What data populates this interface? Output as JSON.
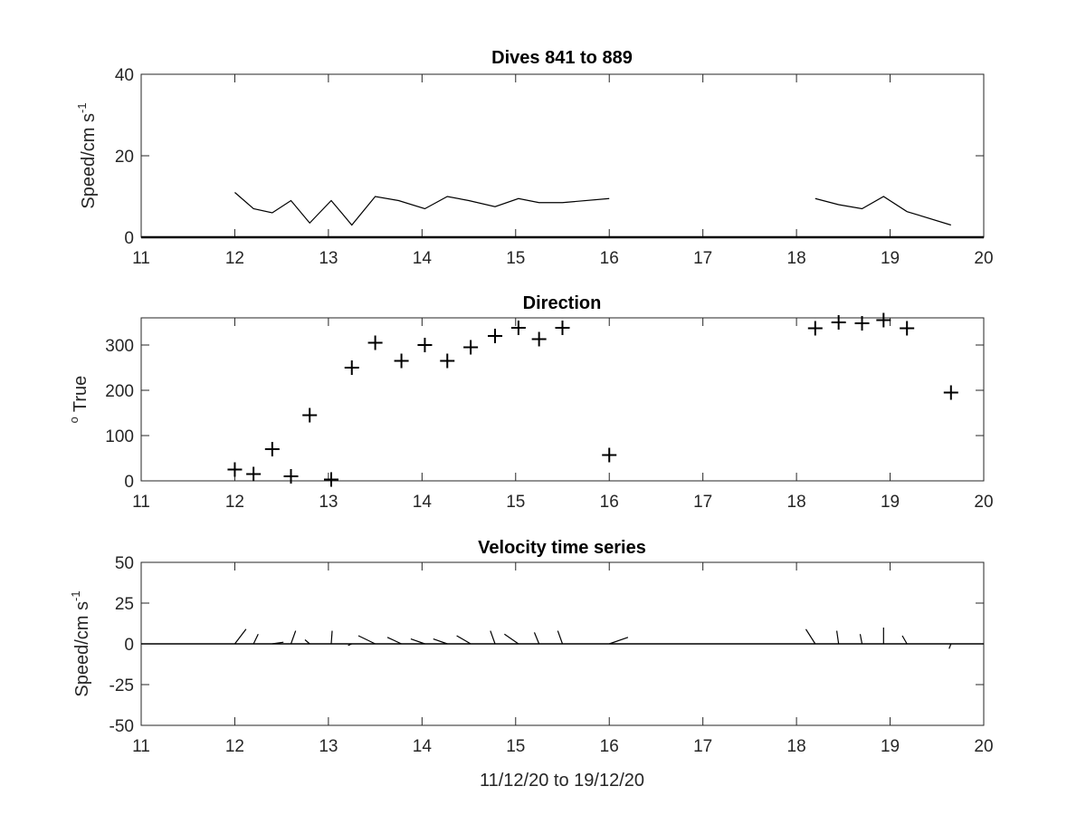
{
  "chart_data": [
    {
      "type": "line",
      "title": "Dives 841 to 889",
      "ylabel": "Speed/cm s",
      "ylabel_superscript": "-1",
      "xlim": [
        11,
        20
      ],
      "ylim": [
        0,
        40
      ],
      "xticks": [
        11,
        12,
        13,
        14,
        15,
        16,
        17,
        18,
        19,
        20
      ],
      "yticks": [
        0,
        20,
        40
      ],
      "grid": false,
      "baseline": 0,
      "series": [
        {
          "segments": [
            [
              [
                12.0,
                11
              ],
              [
                12.2,
                7
              ],
              [
                12.4,
                6
              ],
              [
                12.6,
                9
              ],
              [
                12.8,
                3.5
              ],
              [
                13.03,
                9
              ],
              [
                13.25,
                3
              ],
              [
                13.5,
                10
              ],
              [
                13.75,
                9
              ],
              [
                14.03,
                7
              ],
              [
                14.27,
                10
              ],
              [
                14.5,
                9
              ],
              [
                14.78,
                7.5
              ],
              [
                15.03,
                9.5
              ],
              [
                15.25,
                8.5
              ],
              [
                15.5,
                8.5
              ],
              [
                16.0,
                9.5
              ]
            ],
            [
              [
                18.2,
                9.5
              ],
              [
                18.45,
                8
              ],
              [
                18.7,
                7
              ],
              [
                18.93,
                10
              ],
              [
                19.18,
                6.3
              ],
              [
                19.65,
                3
              ]
            ]
          ]
        }
      ]
    },
    {
      "type": "scatter",
      "title": "Direction",
      "ylabel": "True",
      "ylabel_prefix": "o",
      "xlim": [
        11,
        20
      ],
      "ylim": [
        0,
        360
      ],
      "xticks": [
        11,
        12,
        13,
        14,
        15,
        16,
        17,
        18,
        19,
        20
      ],
      "yticks": [
        0,
        100,
        200,
        300
      ],
      "grid": false,
      "marker": "+",
      "points": [
        [
          12.0,
          25
        ],
        [
          12.2,
          15
        ],
        [
          12.4,
          70
        ],
        [
          12.6,
          10
        ],
        [
          12.8,
          145
        ],
        [
          13.03,
          3
        ],
        [
          13.25,
          250
        ],
        [
          13.5,
          305
        ],
        [
          13.78,
          265
        ],
        [
          14.03,
          300
        ],
        [
          14.27,
          265
        ],
        [
          14.52,
          295
        ],
        [
          14.78,
          320
        ],
        [
          15.03,
          338
        ],
        [
          15.25,
          313
        ],
        [
          15.5,
          338
        ],
        [
          16.0,
          57
        ],
        [
          18.2,
          337
        ],
        [
          18.45,
          350
        ],
        [
          18.7,
          348
        ],
        [
          18.93,
          355
        ],
        [
          19.18,
          337
        ],
        [
          19.65,
          195
        ]
      ]
    },
    {
      "type": "line",
      "title": "Velocity time series",
      "ylabel": "Speed/cm s",
      "ylabel_superscript": "-1",
      "xlabel": "11/12/20 to 19/12/20",
      "xlim": [
        11,
        20
      ],
      "ylim": [
        -50,
        50
      ],
      "xticks": [
        11,
        12,
        13,
        14,
        15,
        16,
        17,
        18,
        19,
        20
      ],
      "yticks": [
        -50,
        -25,
        0,
        25,
        50
      ],
      "grid": false,
      "baseline": 0,
      "stick_vectors": [
        {
          "x": 12.0,
          "dx": 0.12,
          "dy": 9
        },
        {
          "x": 12.2,
          "dx": 0.05,
          "dy": 6
        },
        {
          "x": 12.4,
          "dx": 0.12,
          "dy": 1
        },
        {
          "x": 12.6,
          "dx": 0.05,
          "dy": 8
        },
        {
          "x": 12.8,
          "dx": -0.05,
          "dy": 2.5
        },
        {
          "x": 13.03,
          "dx": 0.01,
          "dy": 8
        },
        {
          "x": 13.25,
          "dx": -0.04,
          "dy": -1
        },
        {
          "x": 13.5,
          "dx": -0.18,
          "dy": 5
        },
        {
          "x": 13.78,
          "dx": -0.15,
          "dy": 4
        },
        {
          "x": 14.03,
          "dx": -0.15,
          "dy": 3
        },
        {
          "x": 14.27,
          "dx": -0.15,
          "dy": 3
        },
        {
          "x": 14.52,
          "dx": -0.15,
          "dy": 5
        },
        {
          "x": 14.78,
          "dx": -0.05,
          "dy": 8
        },
        {
          "x": 15.03,
          "dx": -0.15,
          "dy": 6
        },
        {
          "x": 15.25,
          "dx": -0.05,
          "dy": 7
        },
        {
          "x": 15.5,
          "dx": -0.05,
          "dy": 8
        },
        {
          "x": 16.0,
          "dx": 0.2,
          "dy": 4
        },
        {
          "x": 18.2,
          "dx": -0.1,
          "dy": 9
        },
        {
          "x": 18.45,
          "dx": -0.02,
          "dy": 8
        },
        {
          "x": 18.7,
          "dx": -0.02,
          "dy": 6
        },
        {
          "x": 18.93,
          "dx": 0.0,
          "dy": 10
        },
        {
          "x": 19.18,
          "dx": -0.05,
          "dy": 5
        },
        {
          "x": 19.65,
          "dx": -0.02,
          "dy": -3
        }
      ]
    }
  ]
}
